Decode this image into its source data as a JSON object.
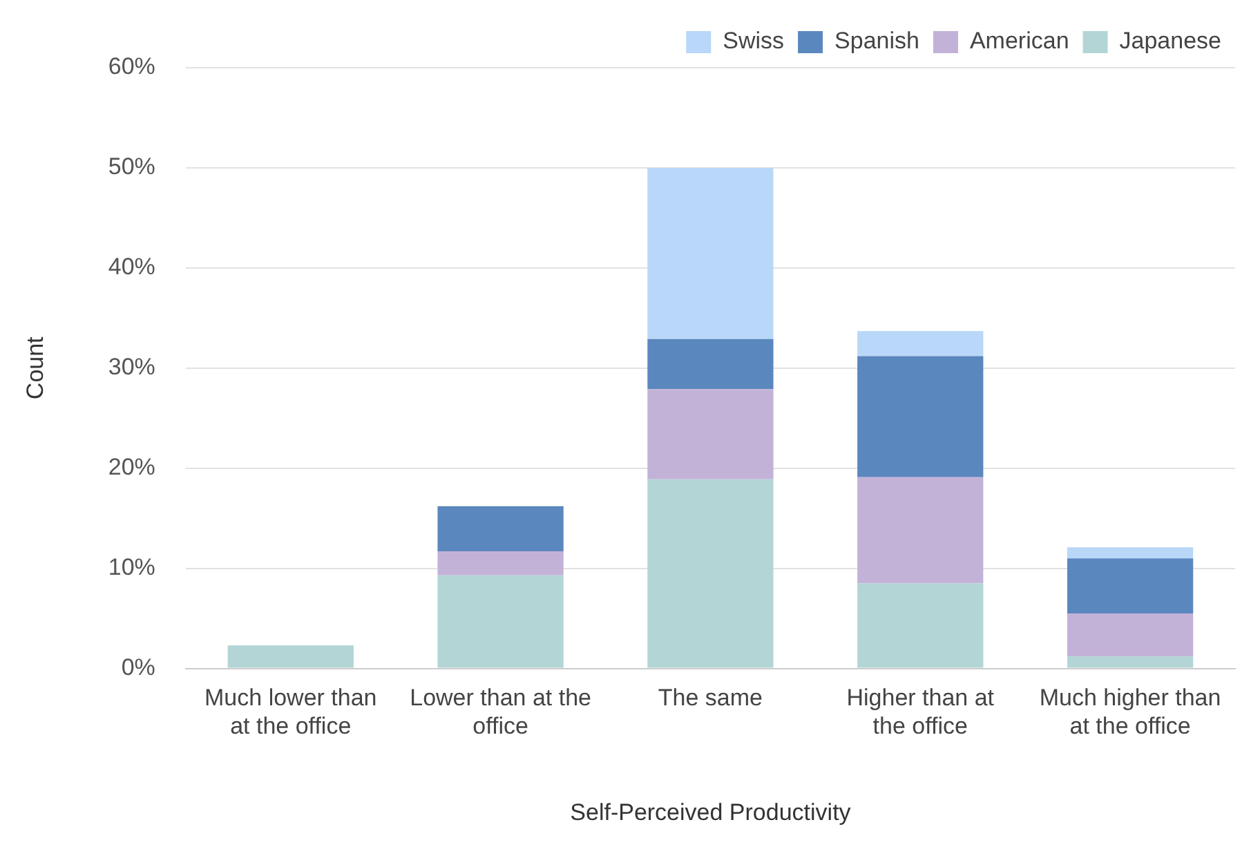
{
  "chart_data": {
    "type": "bar",
    "stacked": true,
    "xlabel": "Self-Perceived Productivity",
    "ylabel": "Count",
    "categories": [
      "Much lower than at the office",
      "Lower than at the office",
      "The same",
      "Higher than at the office",
      "Much higher than at the office"
    ],
    "series": [
      {
        "name": "Japanese",
        "color": "#b3d5d6",
        "values": [
          2.3,
          9.3,
          18.9,
          8.5,
          1.2
        ]
      },
      {
        "name": "American",
        "color": "#c3b2d8",
        "values": [
          0,
          2.4,
          9.0,
          10.6,
          4.3
        ]
      },
      {
        "name": "Spanish",
        "color": "#5a87bd",
        "values": [
          0,
          4.5,
          5.0,
          12.1,
          5.5
        ]
      },
      {
        "name": "Swiss",
        "color": "#b9d7f8",
        "values": [
          0,
          0,
          17.1,
          2.5,
          1.1
        ]
      }
    ],
    "ylim": [
      0,
      60
    ],
    "yticks": [
      {
        "value": 0,
        "label": "0%"
      },
      {
        "value": 10,
        "label": "10%"
      },
      {
        "value": 20,
        "label": "20%"
      },
      {
        "value": 30,
        "label": "30%"
      },
      {
        "value": 40,
        "label": "40%"
      },
      {
        "value": 50,
        "label": "50%"
      },
      {
        "value": 60,
        "label": "60%"
      }
    ],
    "grid": "y",
    "legend": "top right"
  }
}
